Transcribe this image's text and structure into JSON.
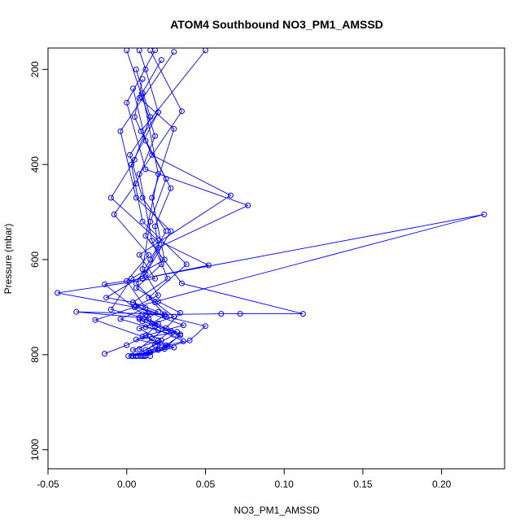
{
  "chart_data": {
    "type": "line",
    "title": "ATOM4 Southbound NO3_PM1_AMSSD",
    "xlabel": "NO3_PM1_AMSSD",
    "ylabel": "Pressure (mbar)",
    "xlim": [
      -0.05,
      0.24
    ],
    "ylim": [
      1040,
      155
    ],
    "y_reversed": true,
    "x_ticks": [
      -0.05,
      0.0,
      0.05,
      0.1,
      0.15,
      0.2
    ],
    "x_tick_labels": [
      "-0.05",
      "0.00",
      "0.05",
      "0.10",
      "0.15",
      "0.20"
    ],
    "y_ticks": [
      200,
      400,
      600,
      800,
      1000
    ],
    "y_tick_labels": [
      "200",
      "400",
      "600",
      "800",
      "1000"
    ],
    "grid": false,
    "color": "#0000ff",
    "marker": "open-circle",
    "series": [
      {
        "x": [
          0.004,
          0.012,
          0.022,
          0.008,
          0.03,
          0.018,
          0.006,
          0.015,
          0.025,
          0.01,
          0.002,
          0.02,
          0.012,
          0.008
        ],
        "y": [
          803,
          790,
          770,
          745,
          720,
          690,
          650,
          600,
          540,
          470,
          380,
          290,
          200,
          160
        ]
      },
      {
        "x": [
          0.003,
          0.015,
          0.025,
          0.034,
          0.018,
          0.008,
          0.012,
          0.06,
          0.072,
          0.112,
          0.035,
          0.012,
          0.02,
          0.01
        ],
        "y": [
          803,
          795,
          780,
          760,
          740,
          725,
          716,
          714,
          714,
          714,
          650,
          550,
          420,
          250
        ]
      },
      {
        "x": [
          0.001,
          0.02,
          0.04,
          0.05,
          0.025,
          0.005,
          0.227,
          0.01,
          0.052,
          0.02,
          -0.01,
          0.005,
          0.015,
          0.006
        ],
        "y": [
          803,
          790,
          770,
          740,
          720,
          700,
          505,
          640,
          612,
          560,
          470,
          390,
          300,
          200
        ]
      },
      {
        "x": [
          -0.014,
          0.0,
          0.012,
          0.02,
          0.008,
          -0.032,
          0.024,
          0.014,
          0.038,
          0.01,
          0.003,
          0.02
        ],
        "y": [
          798,
          780,
          760,
          735,
          722,
          710,
          715,
          680,
          610,
          520,
          400,
          290
        ]
      },
      {
        "x": [
          0.006,
          0.03,
          0.01,
          -0.02,
          0.005,
          -0.044,
          0.018,
          0.008,
          0.066,
          0.016,
          0.005,
          0.01
        ],
        "y": [
          803,
          785,
          762,
          727,
          700,
          670,
          640,
          590,
          465,
          380,
          300,
          220
        ]
      },
      {
        "x": [
          0.01,
          0.024,
          0.034,
          0.016,
          0.01,
          -0.014,
          0.01,
          0.02,
          0.077,
          0.012,
          0.0,
          0.018
        ],
        "y": [
          803,
          788,
          757,
          735,
          715,
          652,
          640,
          575,
          486,
          410,
          270,
          160
        ]
      },
      {
        "x": [
          0.007,
          0.022,
          0.012,
          0.036,
          0.014,
          0.004,
          -0.013,
          0.012,
          0.028,
          0.006,
          -0.004,
          0.03
        ],
        "y": [
          803,
          780,
          760,
          738,
          712,
          690,
          680,
          630,
          540,
          470,
          330,
          163
        ]
      },
      {
        "x": [
          0.011,
          0.004,
          0.02,
          0.028,
          0.014,
          -0.01,
          0.003,
          0.024,
          0.016,
          0.03,
          0.008,
          0.022
        ],
        "y": [
          803,
          790,
          770,
          750,
          725,
          705,
          640,
          600,
          470,
          325,
          260,
          180
        ]
      },
      {
        "x": [
          0.009,
          0.014,
          0.036,
          0.02,
          -0.004,
          0.012,
          0.0,
          0.014,
          -0.008,
          0.006,
          0.018,
          0.0
        ],
        "y": [
          803,
          792,
          772,
          748,
          725,
          702,
          645,
          590,
          505,
          440,
          340,
          160
        ]
      },
      {
        "x": [
          0.012,
          0.026,
          0.006,
          0.032,
          0.01,
          0.02,
          0.004,
          0.026,
          0.016,
          0.008,
          0.035,
          0.015
        ],
        "y": [
          803,
          782,
          768,
          752,
          730,
          710,
          690,
          640,
          560,
          420,
          288,
          160
        ]
      },
      {
        "x": [
          0.004,
          0.018,
          0.03,
          0.012,
          0.024,
          0.006,
          0.02,
          0.01,
          0.015,
          0.025,
          0.009,
          0.05
        ],
        "y": [
          803,
          780,
          758,
          742,
          718,
          698,
          675,
          620,
          520,
          430,
          330,
          160
        ]
      },
      {
        "x": [
          0.015,
          0.008,
          0.016,
          0.025,
          0.034,
          0.02,
          0.006,
          0.022,
          0.018,
          0.028,
          0.012,
          0.004
        ],
        "y": [
          803,
          788,
          766,
          744,
          712,
          688,
          660,
          610,
          530,
          450,
          350,
          240
        ]
      }
    ]
  }
}
